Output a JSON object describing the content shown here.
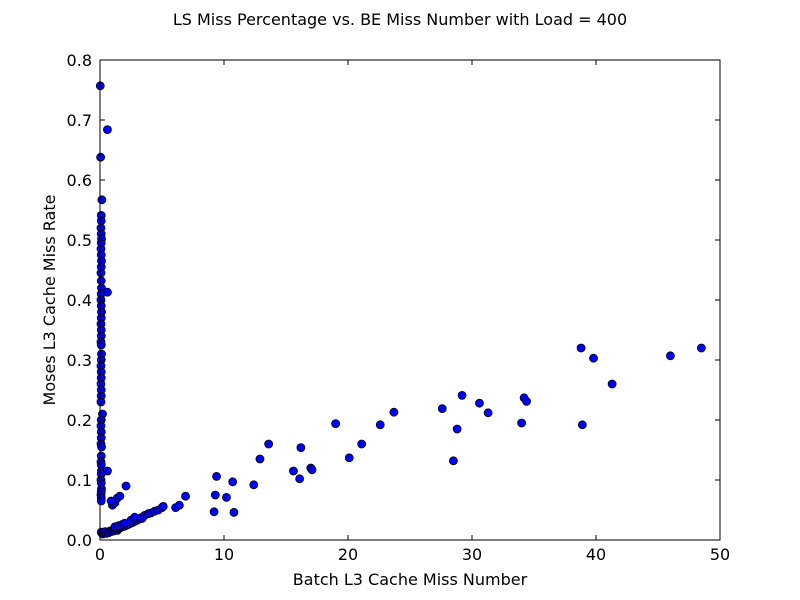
{
  "chart_data": {
    "type": "scatter",
    "title": "LS Miss Percentage vs. BE Miss Number with Load = 400",
    "xlabel": "Batch L3 Cache Miss Number",
    "ylabel": "Moses L3 Cache Miss Rate",
    "xlim": [
      0,
      50
    ],
    "ylim": [
      0,
      0.8
    ],
    "x_ticks": [
      "0",
      "10",
      "20",
      "30",
      "40",
      "50"
    ],
    "y_ticks": [
      "0.0",
      "0.1",
      "0.2",
      "0.3",
      "0.4",
      "0.5",
      "0.6",
      "0.7",
      "0.8"
    ],
    "grid": false,
    "marker_color": "#0000ff",
    "series": [
      {
        "points": [
          [
            0.02,
            0.757
          ],
          [
            0.05,
            0.638
          ],
          [
            0.6,
            0.684
          ],
          [
            0.15,
            0.567
          ],
          [
            0.1,
            0.541
          ],
          [
            0.1,
            0.532
          ],
          [
            0.08,
            0.52
          ],
          [
            0.1,
            0.51
          ],
          [
            0.12,
            0.502
          ],
          [
            0.1,
            0.495
          ],
          [
            0.08,
            0.485
          ],
          [
            0.1,
            0.475
          ],
          [
            0.12,
            0.465
          ],
          [
            0.1,
            0.455
          ],
          [
            0.08,
            0.445
          ],
          [
            0.1,
            0.432
          ],
          [
            0.12,
            0.42
          ],
          [
            0.6,
            0.413
          ],
          [
            0.1,
            0.41
          ],
          [
            0.08,
            0.4
          ],
          [
            0.1,
            0.39
          ],
          [
            0.12,
            0.38
          ],
          [
            0.1,
            0.37
          ],
          [
            0.08,
            0.36
          ],
          [
            0.1,
            0.35
          ],
          [
            0.1,
            0.34
          ],
          [
            0.08,
            0.33
          ],
          [
            0.1,
            0.325
          ],
          [
            0.12,
            0.31
          ],
          [
            0.1,
            0.3
          ],
          [
            0.08,
            0.29
          ],
          [
            0.1,
            0.28
          ],
          [
            0.1,
            0.27
          ],
          [
            0.08,
            0.26
          ],
          [
            0.1,
            0.25
          ],
          [
            0.1,
            0.24
          ],
          [
            0.08,
            0.23
          ],
          [
            0.2,
            0.21
          ],
          [
            0.1,
            0.2
          ],
          [
            0.08,
            0.19
          ],
          [
            0.1,
            0.18
          ],
          [
            0.1,
            0.17
          ],
          [
            0.08,
            0.16
          ],
          [
            0.12,
            0.155
          ],
          [
            0.1,
            0.14
          ],
          [
            0.08,
            0.13
          ],
          [
            0.1,
            0.125
          ],
          [
            0.12,
            0.115
          ],
          [
            0.6,
            0.115
          ],
          [
            0.1,
            0.11
          ],
          [
            0.08,
            0.1
          ],
          [
            0.1,
            0.095
          ],
          [
            0.12,
            0.085
          ],
          [
            0.1,
            0.08
          ],
          [
            0.08,
            0.075
          ],
          [
            0.1,
            0.07
          ],
          [
            0.1,
            0.065
          ],
          [
            0.1,
            0.013
          ],
          [
            0.2,
            0.01
          ],
          [
            0.3,
            0.012
          ],
          [
            0.4,
            0.014
          ],
          [
            0.5,
            0.011
          ],
          [
            0.6,
            0.013
          ],
          [
            0.7,
            0.012
          ],
          [
            0.8,
            0.015
          ],
          [
            0.9,
            0.014
          ],
          [
            1.0,
            0.016
          ],
          [
            1.1,
            0.015
          ],
          [
            1.2,
            0.017
          ],
          [
            1.3,
            0.018
          ],
          [
            1.4,
            0.016
          ],
          [
            1.5,
            0.019
          ],
          [
            1.6,
            0.02
          ],
          [
            1.7,
            0.021
          ],
          [
            1.8,
            0.022
          ],
          [
            2.0,
            0.023
          ],
          [
            2.2,
            0.025
          ],
          [
            2.4,
            0.027
          ],
          [
            2.6,
            0.029
          ],
          [
            2.8,
            0.031
          ],
          [
            3.0,
            0.033
          ],
          [
            3.2,
            0.035
          ],
          [
            3.4,
            0.036
          ],
          [
            1.2,
            0.022
          ],
          [
            1.5,
            0.024
          ],
          [
            1.8,
            0.026
          ],
          [
            2.0,
            0.028
          ],
          [
            2.5,
            0.033
          ],
          [
            2.8,
            0.038
          ],
          [
            3.3,
            0.037
          ],
          [
            3.6,
            0.041
          ],
          [
            3.9,
            0.044
          ],
          [
            4.1,
            0.045
          ],
          [
            4.4,
            0.048
          ],
          [
            4.7,
            0.05
          ],
          [
            5.0,
            0.054
          ],
          [
            5.1,
            0.056
          ],
          [
            6.1,
            0.054
          ],
          [
            6.4,
            0.058
          ],
          [
            6.9,
            0.073
          ],
          [
            1.0,
            0.058
          ],
          [
            1.2,
            0.062
          ],
          [
            1.4,
            0.07
          ],
          [
            1.6,
            0.073
          ],
          [
            2.1,
            0.09
          ],
          [
            0.9,
            0.065
          ],
          [
            9.2,
            0.047
          ],
          [
            9.3,
            0.075
          ],
          [
            9.4,
            0.106
          ],
          [
            10.2,
            0.071
          ],
          [
            10.7,
            0.097
          ],
          [
            10.8,
            0.046
          ],
          [
            12.4,
            0.092
          ],
          [
            12.9,
            0.135
          ],
          [
            13.6,
            0.16
          ],
          [
            15.6,
            0.115
          ],
          [
            16.1,
            0.102
          ],
          [
            16.2,
            0.154
          ],
          [
            17.0,
            0.12
          ],
          [
            17.1,
            0.117
          ],
          [
            19.0,
            0.194
          ],
          [
            20.1,
            0.137
          ],
          [
            21.1,
            0.16
          ],
          [
            22.6,
            0.192
          ],
          [
            23.7,
            0.213
          ],
          [
            27.6,
            0.219
          ],
          [
            28.5,
            0.132
          ],
          [
            28.8,
            0.185
          ],
          [
            29.2,
            0.241
          ],
          [
            30.6,
            0.228
          ],
          [
            31.3,
            0.212
          ],
          [
            34.0,
            0.195
          ],
          [
            34.2,
            0.237
          ],
          [
            34.4,
            0.231
          ],
          [
            38.8,
            0.32
          ],
          [
            38.9,
            0.192
          ],
          [
            39.8,
            0.303
          ],
          [
            41.3,
            0.26
          ],
          [
            46.0,
            0.307
          ],
          [
            48.5,
            0.32
          ]
        ]
      }
    ]
  }
}
